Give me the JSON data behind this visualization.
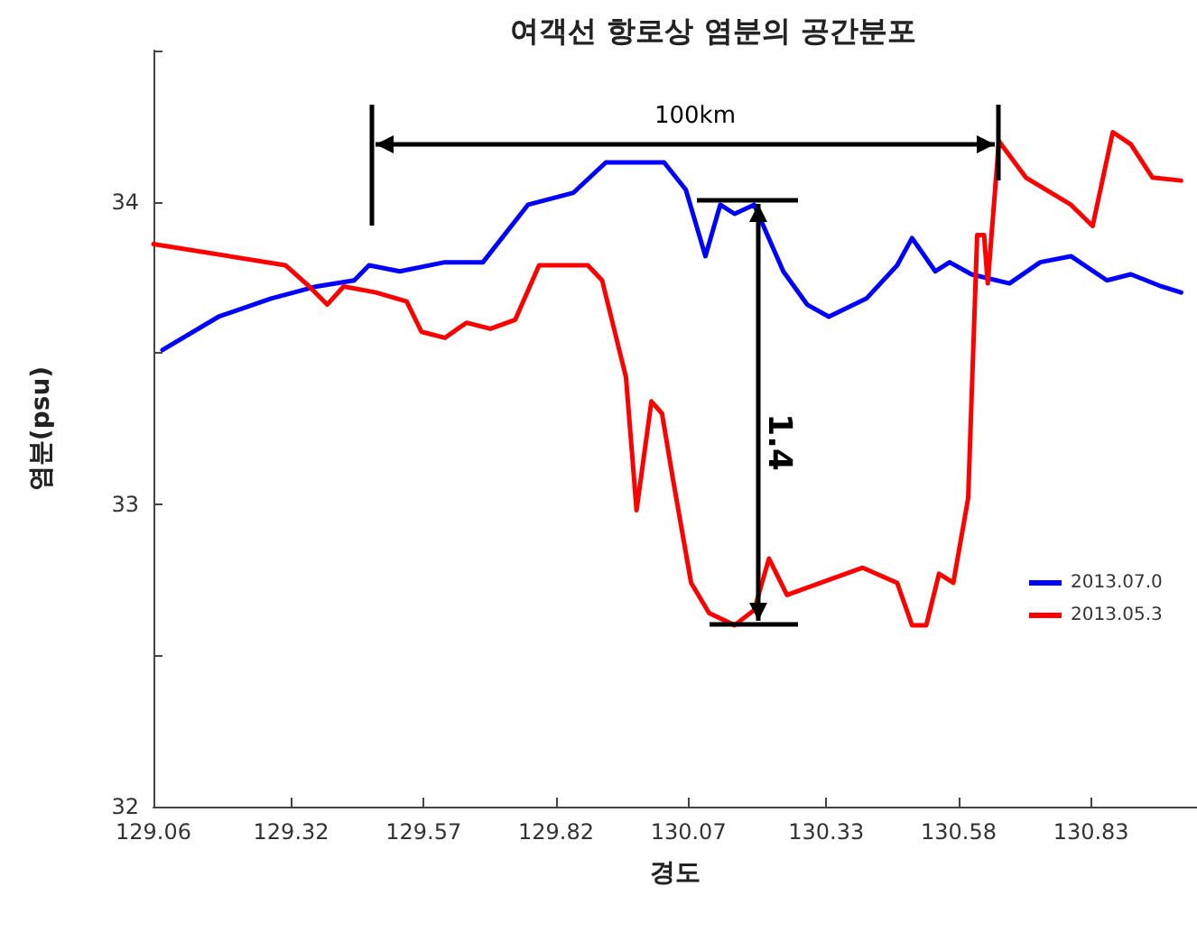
{
  "chart_data": {
    "type": "line",
    "title": "여객선 항로상 염분의 공간분포",
    "xlabel": "경도",
    "ylabel": "염분(psu)",
    "xlim": [
      129.06,
      131.03
    ],
    "xticks": [
      129.06,
      129.32,
      129.57,
      129.82,
      130.07,
      130.33,
      130.58,
      130.83
    ],
    "ylim": [
      32,
      34.5
    ],
    "yticks": [
      32,
      {
        "value": 32.5,
        "label": null
      },
      33,
      {
        "value": 33.5,
        "label": null
      },
      34,
      {
        "value": 34.5,
        "label": null
      }
    ],
    "grid": false,
    "legend": "right",
    "marker": "none",
    "line_style": "solid",
    "annotations": [
      "100km",
      "1.4"
    ],
    "series": [
      {
        "name": "2013.07.0",
        "color": "#0000ff",
        "x": [
          129.077,
          129.183,
          129.282,
          129.368,
          129.439,
          129.467,
          129.525,
          129.61,
          129.682,
          129.767,
          129.853,
          129.914,
          130.024,
          130.065,
          130.102,
          130.13,
          130.157,
          130.194,
          130.249,
          130.294,
          130.335,
          130.406,
          130.464,
          130.492,
          130.536,
          130.563,
          130.604,
          130.676,
          130.734,
          130.792,
          130.86,
          130.905,
          130.963,
          131.0
        ],
        "values": [
          33.51,
          33.62,
          33.68,
          33.72,
          33.74,
          33.79,
          33.77,
          33.8,
          33.8,
          33.99,
          34.03,
          34.13,
          34.13,
          34.04,
          33.82,
          33.99,
          33.96,
          33.99,
          33.77,
          33.66,
          33.62,
          33.68,
          33.79,
          33.88,
          33.77,
          33.8,
          33.76,
          33.73,
          33.8,
          33.82,
          33.74,
          33.76,
          33.72,
          33.7
        ]
      },
      {
        "name": "2013.05.3",
        "color": "#ff0000",
        "x": [
          129.06,
          129.309,
          129.354,
          129.388,
          129.419,
          129.48,
          129.538,
          129.566,
          129.61,
          129.651,
          129.696,
          129.743,
          129.788,
          129.88,
          129.907,
          129.952,
          129.972,
          130.0,
          130.02,
          130.041,
          130.075,
          130.109,
          130.157,
          130.194,
          130.222,
          130.256,
          130.335,
          130.399,
          130.464,
          130.492,
          130.519,
          130.543,
          130.57,
          130.598,
          130.615,
          130.628,
          130.635,
          130.656,
          130.707,
          130.792,
          130.833,
          130.871,
          130.905,
          130.946,
          131.0
        ],
        "values": [
          33.86,
          33.79,
          33.72,
          33.66,
          33.72,
          33.7,
          33.67,
          33.57,
          33.55,
          33.6,
          33.58,
          33.61,
          33.79,
          33.79,
          33.74,
          33.42,
          32.98,
          33.34,
          33.3,
          33.08,
          32.74,
          32.64,
          32.6,
          32.65,
          32.82,
          32.7,
          32.75,
          32.79,
          32.74,
          32.6,
          32.6,
          32.77,
          32.74,
          33.02,
          33.89,
          33.89,
          33.73,
          34.2,
          34.08,
          33.99,
          33.92,
          34.23,
          34.19,
          34.08,
          34.07
        ]
      }
    ]
  }
}
